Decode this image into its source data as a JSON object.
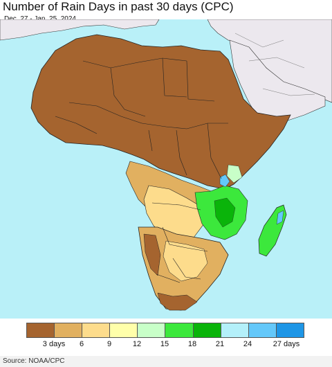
{
  "title": "Number of Rain Days in past 30 days (CPC)",
  "subtitle": "Dec. 27 - Jan. 25, 2024",
  "source": "Source: NOAA/CPC",
  "legend": {
    "colors": [
      "#a5642f",
      "#e1b060",
      "#fddc8c",
      "#ffffaa",
      "#c8ffc8",
      "#3ce83c",
      "#0ab40a",
      "#b4f0fa",
      "#64c8fa",
      "#1e96e6"
    ],
    "ticks": [
      "3 days",
      "6",
      "9",
      "12",
      "15",
      "18",
      "21",
      "24",
      "27 days"
    ]
  },
  "map_colors": {
    "ocean": "#b9f0f8",
    "non_africa_land": "#ece8ee",
    "border": "#222222"
  }
}
